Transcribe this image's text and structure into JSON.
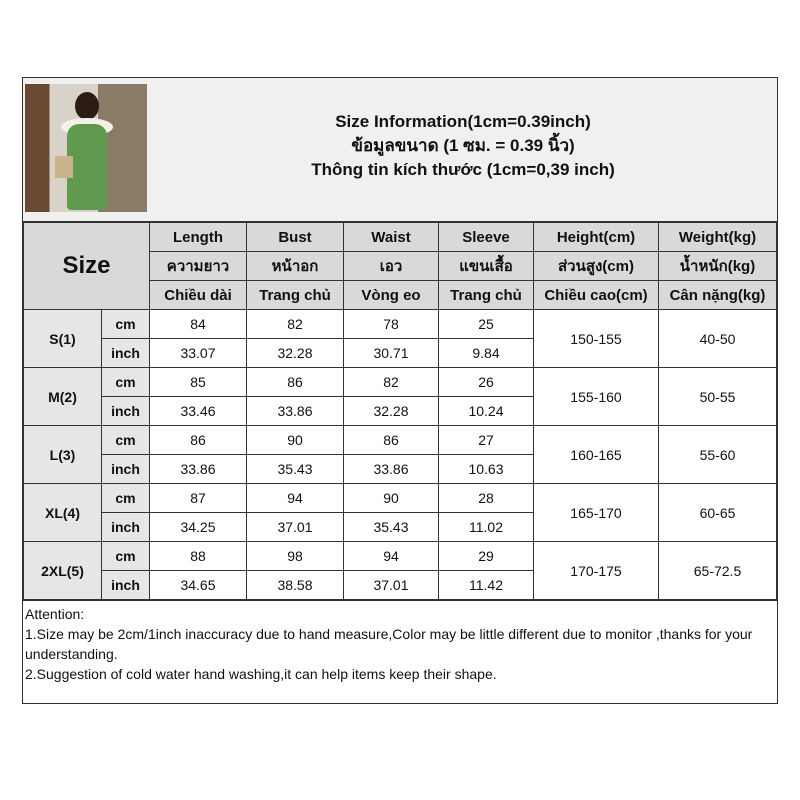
{
  "title_lines": [
    "Size Information(1cm=0.39inch)",
    "ข้อมูลขนาด (1 ซม. = 0.39 นิ้ว)",
    "Thông tin kích thước (1cm=0,39 inch)"
  ],
  "size_label": "Size",
  "headers": [
    [
      "Length",
      "Bust",
      "Waist",
      "Sleeve",
      "Height(cm)",
      "Weight(kg)"
    ],
    [
      "ความยาว",
      "หน้าอก",
      "เอว",
      "แขนเสื้อ",
      "ส่วนสูง(cm)",
      "น้ำหนัก(kg)"
    ],
    [
      "Chiều dài",
      "Trang chủ",
      "Vòng eo",
      "Trang chủ",
      "Chiều cao(cm)",
      "Cân nặng(kg)"
    ]
  ],
  "units": [
    "cm",
    "inch"
  ],
  "rows": [
    {
      "size": "S(1)",
      "cm": [
        "84",
        "82",
        "78",
        "25"
      ],
      "inch": [
        "33.07",
        "32.28",
        "30.71",
        "9.84"
      ],
      "height": "150-155",
      "weight": "40-50"
    },
    {
      "size": "M(2)",
      "cm": [
        "85",
        "86",
        "82",
        "26"
      ],
      "inch": [
        "33.46",
        "33.86",
        "32.28",
        "10.24"
      ],
      "height": "155-160",
      "weight": "50-55"
    },
    {
      "size": "L(3)",
      "cm": [
        "86",
        "90",
        "86",
        "27"
      ],
      "inch": [
        "33.86",
        "35.43",
        "33.86",
        "10.63"
      ],
      "height": "160-165",
      "weight": "55-60"
    },
    {
      "size": "XL(4)",
      "cm": [
        "87",
        "94",
        "90",
        "28"
      ],
      "inch": [
        "34.25",
        "37.01",
        "35.43",
        "11.02"
      ],
      "height": "165-170",
      "weight": "60-65"
    },
    {
      "size": "2XL(5)",
      "cm": [
        "88",
        "98",
        "94",
        "29"
      ],
      "inch": [
        "34.65",
        "38.58",
        "37.01",
        "11.42"
      ],
      "height": "170-175",
      "weight": "65-72.5"
    }
  ],
  "attention": [
    "Attention:",
    "1.Size may be 2cm/1inch inaccuracy due to hand measure,Color may be little different due to monitor ,thanks for your understanding.",
    "2.Suggestion of cold water hand washing,it can help items keep their shape."
  ]
}
